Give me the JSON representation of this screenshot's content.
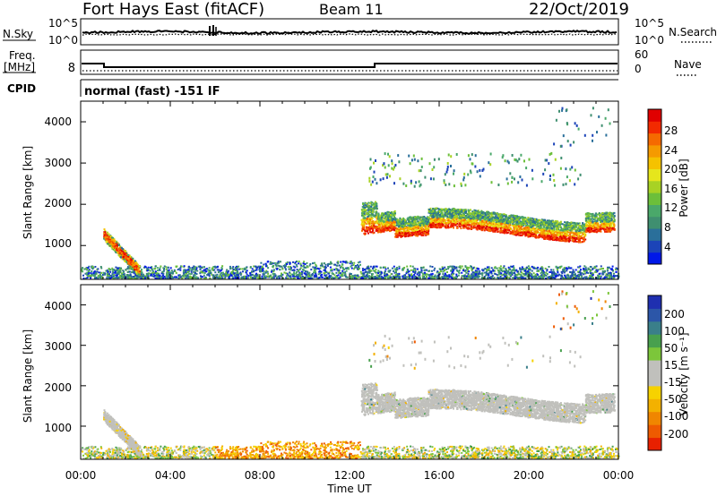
{
  "header": {
    "station": "Fort Hays East (fitACF)",
    "beam": "Beam 11",
    "date": "22/Oct/2019"
  },
  "noise_panel": {
    "left_label": "N.Sky",
    "right_label": "N.Search",
    "ticks_left": [
      "10^5",
      "10^0"
    ],
    "ticks_right": [
      "10^5",
      "10^0"
    ]
  },
  "freq_panel": {
    "left_label_line1": "Freq.",
    "left_label_line2": "[MHz]",
    "tick_left": "8",
    "right_label": "Nave",
    "ticks_right": [
      "60",
      "0"
    ]
  },
  "cpid": {
    "label": "CPID",
    "value": "normal (fast) -151 IF"
  },
  "colors": {
    "frame": "#000000",
    "velocity_ground": "#c0c0bc"
  },
  "chart_data": [
    {
      "type": "heatmap",
      "panel": "power",
      "ylabel": "Slant Range [km]",
      "yticks": [
        "4000",
        "3000",
        "2000",
        "1000"
      ],
      "ylim": [
        180,
        4500
      ],
      "xlim": [
        0,
        24
      ],
      "colorbar": {
        "label": "Power [dB]",
        "ticks": [
          "28",
          "24",
          "20",
          "16",
          "12",
          "8",
          "4"
        ],
        "colors": [
          "#0018e8",
          "#1c44b8",
          "#2a6f9a",
          "#3f8f70",
          "#4aa86a",
          "#6cbf3a",
          "#a8d224",
          "#e6e61c",
          "#f5c200",
          "#f59a00",
          "#f56a00",
          "#f22a00",
          "#e00000"
        ]
      },
      "features": [
        {
          "name": "near-range scatter",
          "time_h": [
            0.0,
            24.0
          ],
          "range_km": [
            180,
            500
          ]
        },
        {
          "name": "early echo band",
          "time_h": [
            1.0,
            2.6
          ],
          "range_km": [
            350,
            1400
          ]
        },
        {
          "name": "ionospheric band",
          "time_h": [
            12.5,
            23.8
          ],
          "range_km": [
            900,
            2000
          ]
        },
        {
          "name": "far-range scatter",
          "time_h": [
            12.8,
            22.0
          ],
          "range_km": [
            2500,
            3200
          ]
        }
      ]
    },
    {
      "type": "heatmap",
      "panel": "velocity",
      "ylabel": "Slant Range [km]",
      "yticks": [
        "4000",
        "3000",
        "2000",
        "1000"
      ],
      "ylim": [
        180,
        4500
      ],
      "xlim": [
        0,
        24
      ],
      "xticks": [
        "00:00",
        "04:00",
        "08:00",
        "12:00",
        "16:00",
        "20:00",
        "00:00"
      ],
      "xlabel": "Time UT",
      "colorbar": {
        "label": "Velocity [m s⁻¹]",
        "ticks": [
          "200",
          "100",
          "50",
          "15",
          "-15",
          "-50",
          "-100",
          "-200"
        ],
        "colors": [
          "#1f2fb0",
          "#2c56a8",
          "#3a7f8a",
          "#48a04e",
          "#7cc63a",
          "#c0c0bc",
          "#c0c0bc",
          "#f6d200",
          "#f3b100",
          "#f08600",
          "#ee5a00",
          "#e82000"
        ]
      },
      "features": [
        {
          "name": "near-range flow",
          "time_h": [
            0.0,
            24.0
          ],
          "range_km": [
            180,
            500
          ]
        },
        {
          "name": "early echo band",
          "time_h": [
            1.0,
            2.6
          ],
          "range_km": [
            350,
            1400
          ]
        },
        {
          "name": "ground scatter band",
          "time_h": [
            12.5,
            23.8
          ],
          "range_km": [
            900,
            2000
          ]
        }
      ]
    }
  ]
}
